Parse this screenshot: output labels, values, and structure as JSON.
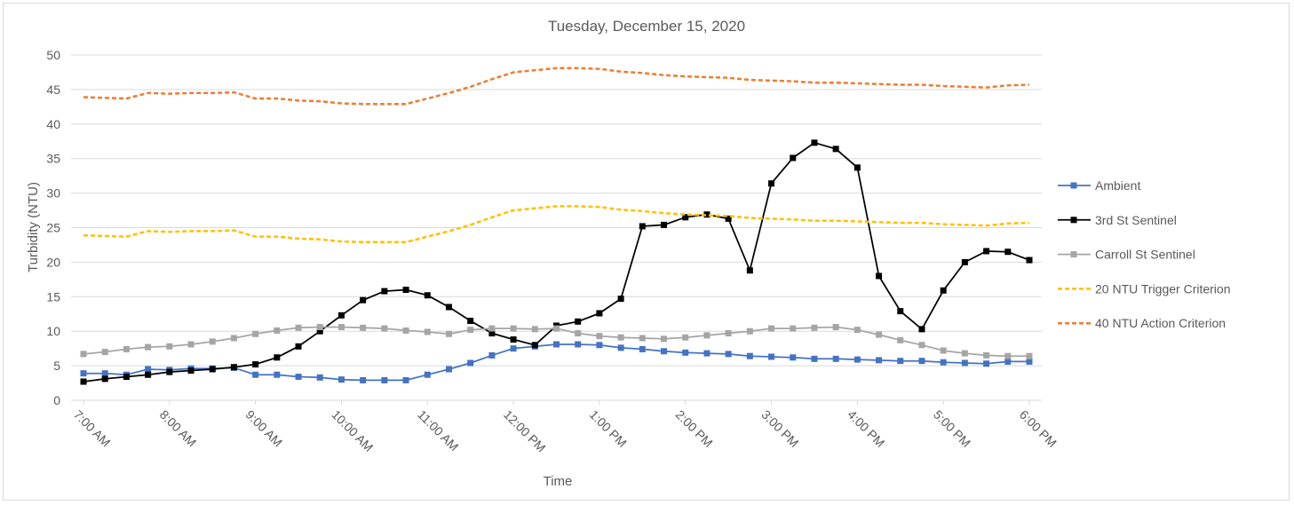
{
  "chart_data": {
    "type": "line",
    "title": "Tuesday, December 15, 2020",
    "xlabel": "Time",
    "ylabel": "Turbidity (NTU)",
    "ylim": [
      0,
      50
    ],
    "yticks": [
      0,
      5,
      10,
      15,
      20,
      25,
      30,
      35,
      40,
      45,
      50
    ],
    "xlim": [
      "7:00 AM",
      "6:00 PM"
    ],
    "xticks": [
      "7:00 AM",
      "8:00 AM",
      "9:00 AM",
      "10:00 AM",
      "11:00 AM",
      "12:00 PM",
      "1:00 PM",
      "2:00 PM",
      "3:00 PM",
      "4:00 PM",
      "5:00 PM",
      "6:00 PM"
    ],
    "x": [
      "7:00 AM",
      "7:15 AM",
      "7:30 AM",
      "7:45 AM",
      "8:00 AM",
      "8:15 AM",
      "8:30 AM",
      "8:45 AM",
      "9:00 AM",
      "9:15 AM",
      "9:30 AM",
      "9:45 AM",
      "10:00 AM",
      "10:15 AM",
      "10:30 AM",
      "10:45 AM",
      "11:00 AM",
      "11:15 AM",
      "11:30 AM",
      "11:45 AM",
      "12:00 PM",
      "12:15 PM",
      "12:30 PM",
      "12:45 PM",
      "1:00 PM",
      "1:15 PM",
      "1:30 PM",
      "1:45 PM",
      "2:00 PM",
      "2:15 PM",
      "2:30 PM",
      "2:45 PM",
      "3:00 PM",
      "3:15 PM",
      "3:30 PM",
      "3:45 PM",
      "4:00 PM",
      "4:15 PM",
      "4:30 PM",
      "4:45 PM",
      "5:00 PM",
      "5:15 PM",
      "5:30 PM",
      "5:45 PM",
      "6:00 PM"
    ],
    "grid": true,
    "legend_position": "right",
    "series": [
      {
        "name": "Ambient",
        "color": "#4472c4",
        "style": "solid",
        "marker": "square",
        "values": [
          3.9,
          3.9,
          3.7,
          4.5,
          4.4,
          4.6,
          4.6,
          4.7,
          3.7,
          3.7,
          3.4,
          3.3,
          3.0,
          2.9,
          2.9,
          2.9,
          3.7,
          4.5,
          5.4,
          6.5,
          7.5,
          7.8,
          8.1,
          8.1,
          8.0,
          7.6,
          7.4,
          7.1,
          6.9,
          6.8,
          6.7,
          6.4,
          6.3,
          6.2,
          6.0,
          6.0,
          5.9,
          5.8,
          5.7,
          5.7,
          5.5,
          5.4,
          5.3,
          5.6,
          5.6
        ]
      },
      {
        "name": "3rd St Sentinel",
        "color": "#000000",
        "style": "solid",
        "marker": "square",
        "values": [
          2.7,
          3.1,
          3.4,
          3.7,
          4.1,
          4.3,
          4.5,
          4.8,
          5.2,
          6.2,
          7.8,
          10.0,
          12.3,
          14.5,
          15.8,
          16.0,
          15.2,
          13.5,
          11.5,
          9.7,
          8.8,
          8.0,
          10.8,
          11.4,
          12.6,
          14.7,
          25.2,
          25.4,
          26.5,
          26.9,
          26.3,
          18.8,
          31.4,
          35.1,
          37.3,
          36.4,
          33.7,
          18.0,
          12.9,
          10.3,
          15.9,
          20.0,
          21.6,
          21.5,
          20.3
        ]
      },
      {
        "name": "Carroll St Sentinel",
        "color": "#a5a5a5",
        "style": "solid",
        "marker": "square",
        "values": [
          6.7,
          7.0,
          7.4,
          7.7,
          7.8,
          8.1,
          8.5,
          9.0,
          9.6,
          10.1,
          10.5,
          10.6,
          10.6,
          10.5,
          10.4,
          10.1,
          9.9,
          9.6,
          10.2,
          10.4,
          10.4,
          10.3,
          10.4,
          9.7,
          9.3,
          9.1,
          9.0,
          8.9,
          9.1,
          9.4,
          9.7,
          10.0,
          10.4,
          10.4,
          10.5,
          10.6,
          10.2,
          9.5,
          8.7,
          8.0,
          7.2,
          6.8,
          6.5,
          6.4,
          6.4
        ]
      },
      {
        "name": "20 NTU Trigger Criterion",
        "color": "#ffc000",
        "style": "dashed",
        "marker": "none",
        "values": [
          23.9,
          23.8,
          23.7,
          24.5,
          24.4,
          24.5,
          24.5,
          24.6,
          23.7,
          23.7,
          23.4,
          23.3,
          23.0,
          22.9,
          22.9,
          22.9,
          23.7,
          24.5,
          25.4,
          26.5,
          27.5,
          27.8,
          28.1,
          28.1,
          28.0,
          27.6,
          27.4,
          27.1,
          26.9,
          26.8,
          26.7,
          26.4,
          26.3,
          26.2,
          26.0,
          26.0,
          25.9,
          25.8,
          25.7,
          25.7,
          25.5,
          25.4,
          25.3,
          25.6,
          25.7
        ]
      },
      {
        "name": "40 NTU Action Criterion",
        "color": "#ed7d31",
        "style": "dashed",
        "marker": "none",
        "values": [
          43.9,
          43.8,
          43.7,
          44.5,
          44.4,
          44.5,
          44.5,
          44.6,
          43.7,
          43.7,
          43.4,
          43.3,
          43.0,
          42.9,
          42.9,
          42.9,
          43.7,
          44.5,
          45.4,
          46.5,
          47.5,
          47.8,
          48.1,
          48.1,
          48.0,
          47.6,
          47.4,
          47.1,
          46.9,
          46.8,
          46.7,
          46.4,
          46.3,
          46.2,
          46.0,
          46.0,
          45.9,
          45.8,
          45.7,
          45.7,
          45.5,
          45.4,
          45.3,
          45.6,
          45.7
        ]
      }
    ]
  }
}
